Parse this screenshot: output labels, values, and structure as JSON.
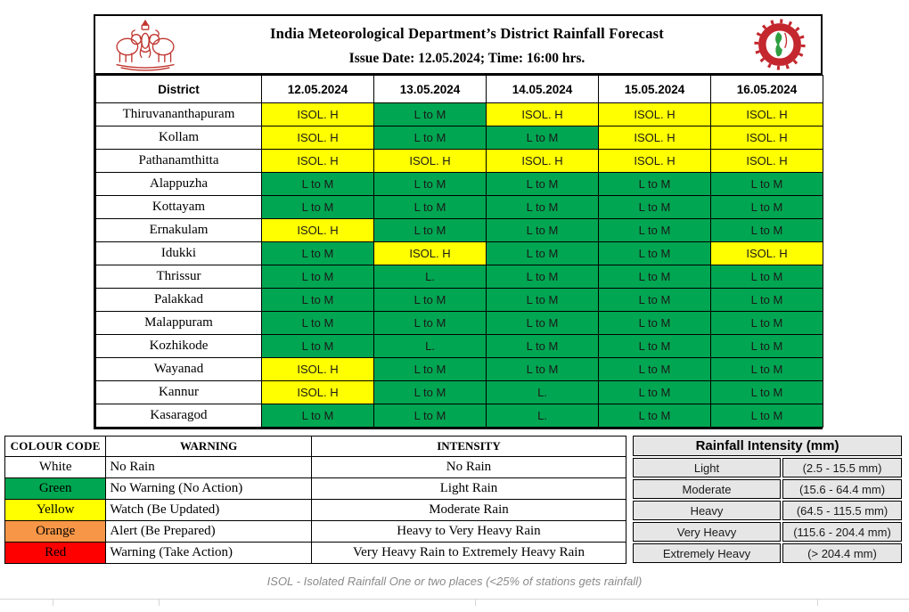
{
  "colors": {
    "green": "#00A651",
    "yellow": "#FFFF00",
    "orange": "#F79646",
    "red": "#FF0000",
    "white": "#FFFFFF"
  },
  "header": {
    "title": "India Meteorological Department’s District Rainfall Forecast",
    "subtitle": "Issue Date: 12.05.2024; Time: 16:00 hrs."
  },
  "forecast": {
    "columns": [
      "District",
      "12.05.2024",
      "13.05.2024",
      "14.05.2024",
      "15.05.2024",
      "16.05.2024"
    ],
    "rows": [
      {
        "district": "Thiruvananthapuram",
        "cells": [
          {
            "text": "ISOL. H",
            "color": "yellow"
          },
          {
            "text": "L to M",
            "color": "green"
          },
          {
            "text": "ISOL. H",
            "color": "yellow"
          },
          {
            "text": "ISOL. H",
            "color": "yellow"
          },
          {
            "text": "ISOL. H",
            "color": "yellow"
          }
        ]
      },
      {
        "district": "Kollam",
        "cells": [
          {
            "text": "ISOL. H",
            "color": "yellow"
          },
          {
            "text": "L to M",
            "color": "green"
          },
          {
            "text": "L to M",
            "color": "green"
          },
          {
            "text": "ISOL. H",
            "color": "yellow"
          },
          {
            "text": "ISOL. H",
            "color": "yellow"
          }
        ]
      },
      {
        "district": "Pathanamthitta",
        "cells": [
          {
            "text": "ISOL. H",
            "color": "yellow"
          },
          {
            "text": "ISOL. H",
            "color": "yellow"
          },
          {
            "text": "ISOL. H",
            "color": "yellow"
          },
          {
            "text": "ISOL. H",
            "color": "yellow"
          },
          {
            "text": "ISOL. H",
            "color": "yellow"
          }
        ]
      },
      {
        "district": "Alappuzha",
        "cells": [
          {
            "text": "L to M",
            "color": "green"
          },
          {
            "text": "L to M",
            "color": "green"
          },
          {
            "text": "L to M",
            "color": "green"
          },
          {
            "text": "L to M",
            "color": "green"
          },
          {
            "text": "L to M",
            "color": "green"
          }
        ]
      },
      {
        "district": "Kottayam",
        "cells": [
          {
            "text": "L to M",
            "color": "green"
          },
          {
            "text": "L to M",
            "color": "green"
          },
          {
            "text": "L to M",
            "color": "green"
          },
          {
            "text": "L to M",
            "color": "green"
          },
          {
            "text": "L to M",
            "color": "green"
          }
        ]
      },
      {
        "district": "Ernakulam",
        "cells": [
          {
            "text": "ISOL. H",
            "color": "yellow"
          },
          {
            "text": "L to M",
            "color": "green"
          },
          {
            "text": "L to M",
            "color": "green"
          },
          {
            "text": "L to M",
            "color": "green"
          },
          {
            "text": "L to M",
            "color": "green"
          }
        ]
      },
      {
        "district": "Idukki",
        "cells": [
          {
            "text": "L to M",
            "color": "green"
          },
          {
            "text": "ISOL. H",
            "color": "yellow"
          },
          {
            "text": "L to M",
            "color": "green"
          },
          {
            "text": "L to M",
            "color": "green"
          },
          {
            "text": "ISOL. H",
            "color": "yellow"
          }
        ]
      },
      {
        "district": "Thrissur",
        "cells": [
          {
            "text": "L to M",
            "color": "green"
          },
          {
            "text": "L.",
            "color": "green"
          },
          {
            "text": "L to M",
            "color": "green"
          },
          {
            "text": "L to M",
            "color": "green"
          },
          {
            "text": "L to M",
            "color": "green"
          }
        ]
      },
      {
        "district": "Palakkad",
        "cells": [
          {
            "text": "L to M",
            "color": "green"
          },
          {
            "text": "L to M",
            "color": "green"
          },
          {
            "text": "L to M",
            "color": "green"
          },
          {
            "text": "L to M",
            "color": "green"
          },
          {
            "text": "L to M",
            "color": "green"
          }
        ]
      },
      {
        "district": "Malappuram",
        "cells": [
          {
            "text": "L to M",
            "color": "green"
          },
          {
            "text": "L to M",
            "color": "green"
          },
          {
            "text": "L to M",
            "color": "green"
          },
          {
            "text": "L to M",
            "color": "green"
          },
          {
            "text": "L to M",
            "color": "green"
          }
        ]
      },
      {
        "district": "Kozhikode",
        "cells": [
          {
            "text": "L to M",
            "color": "green"
          },
          {
            "text": "L.",
            "color": "green"
          },
          {
            "text": "L to M",
            "color": "green"
          },
          {
            "text": "L to M",
            "color": "green"
          },
          {
            "text": "L to M",
            "color": "green"
          }
        ]
      },
      {
        "district": "Wayanad",
        "cells": [
          {
            "text": "ISOL. H",
            "color": "yellow"
          },
          {
            "text": "L to M",
            "color": "green"
          },
          {
            "text": "L to M",
            "color": "green"
          },
          {
            "text": "L to M",
            "color": "green"
          },
          {
            "text": "L to M",
            "color": "green"
          }
        ]
      },
      {
        "district": "Kannur",
        "cells": [
          {
            "text": "ISOL. H",
            "color": "yellow"
          },
          {
            "text": "L to M",
            "color": "green"
          },
          {
            "text": "L.",
            "color": "green"
          },
          {
            "text": "L to M",
            "color": "green"
          },
          {
            "text": "L to M",
            "color": "green"
          }
        ]
      },
      {
        "district": "Kasaragod",
        "cells": [
          {
            "text": "L to M",
            "color": "green"
          },
          {
            "text": "L to M",
            "color": "green"
          },
          {
            "text": "L.",
            "color": "green"
          },
          {
            "text": "L to M",
            "color": "green"
          },
          {
            "text": "L to M",
            "color": "green"
          }
        ]
      }
    ]
  },
  "legend": {
    "columns": [
      "COLOUR CODE",
      "WARNING",
      "INTENSITY"
    ],
    "rows": [
      {
        "code": "White",
        "color": "white",
        "warning": "No Rain",
        "intensity": "No Rain"
      },
      {
        "code": "Green",
        "color": "green",
        "warning": "No Warning (No Action)",
        "intensity": "Light Rain"
      },
      {
        "code": "Yellow",
        "color": "yellow",
        "warning": "Watch (Be Updated)",
        "intensity": "Moderate Rain"
      },
      {
        "code": "Orange",
        "color": "orange",
        "warning": "Alert (Be Prepared)",
        "intensity": "Heavy to Very Heavy Rain"
      },
      {
        "code": "Red",
        "color": "red",
        "warning": "Warning (Take Action)",
        "intensity": "Very Heavy Rain to Extremely Heavy Rain"
      }
    ]
  },
  "intensity_scale": {
    "title": "Rainfall Intensity (mm)",
    "rows": [
      {
        "label": "Light",
        "range": "(2.5 - 15.5 mm)"
      },
      {
        "label": "Moderate",
        "range": "(15.6 - 64.4 mm)"
      },
      {
        "label": "Heavy",
        "range": "(64.5 - 115.5 mm)"
      },
      {
        "label": "Very Heavy",
        "range": "(115.6 - 204.4 mm)"
      },
      {
        "label": "Extremely Heavy",
        "range": "(> 204.4 mm)"
      }
    ]
  },
  "footer": {
    "note": "ISOL - Isolated Rainfall One or two places (<25% of stations gets rainfall)"
  }
}
